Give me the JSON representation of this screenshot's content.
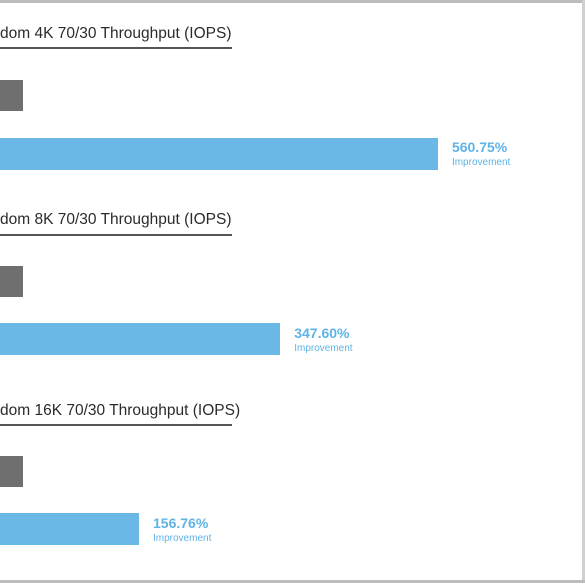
{
  "chart_data": {
    "type": "bar",
    "orientation": "horizontal",
    "groups": [
      {
        "title": "dom 4K 70/30 Throughput (IOPS)",
        "improvement_value": "560.75%",
        "improvement_label": "Improvement",
        "before": 1.0,
        "after": 6.6075
      },
      {
        "title": "dom 8K 70/30 Throughput (IOPS)",
        "improvement_value": "347.60%",
        "improvement_label": "Improvement",
        "before": 1.0,
        "after": 4.476
      },
      {
        "title": "dom 16K 70/30 Throughput (IOPS)",
        "improvement_value": "156.76%",
        "improvement_label": "Improvement",
        "before": 1.0,
        "after": 2.5676
      }
    ],
    "colors": {
      "before": "#6f6f6f",
      "after": "#6bb8e6"
    }
  }
}
